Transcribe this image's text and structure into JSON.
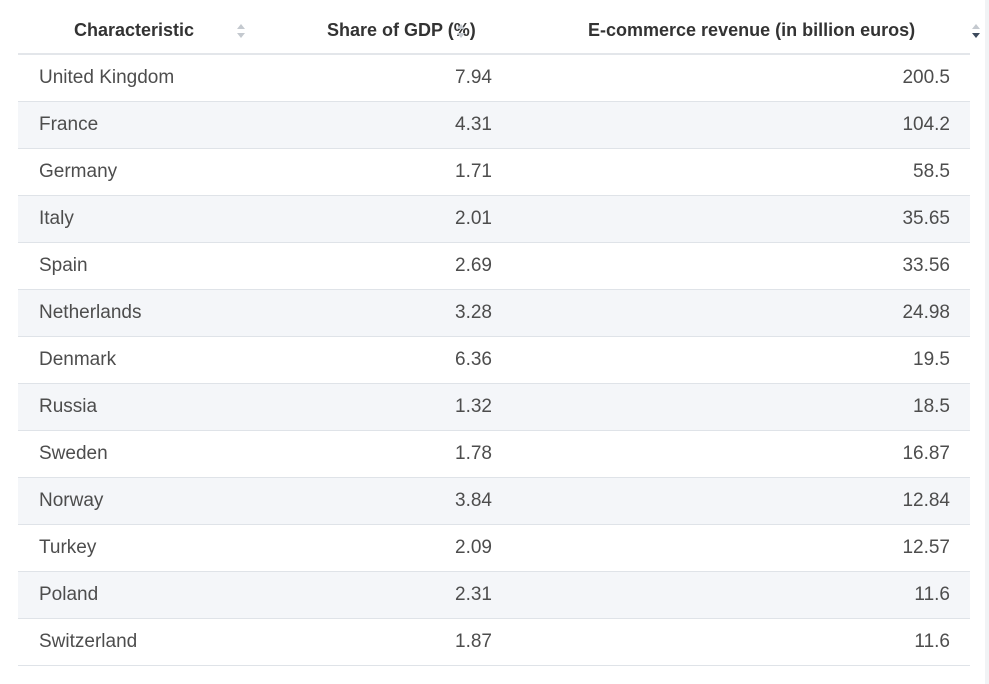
{
  "chart_data": {
    "type": "table",
    "columns": [
      {
        "label": "Characteristic",
        "sort": "none"
      },
      {
        "label": "Share of GDP (%)",
        "sort": "none"
      },
      {
        "label": "E-commerce revenue (in billion euros)",
        "sort": "descending"
      }
    ],
    "rows": [
      {
        "characteristic": "United Kingdom",
        "share": "7.94",
        "revenue": "200.5"
      },
      {
        "characteristic": "France",
        "share": "4.31",
        "revenue": "104.2"
      },
      {
        "characteristic": "Germany",
        "share": "1.71",
        "revenue": "58.5"
      },
      {
        "characteristic": "Italy",
        "share": "2.01",
        "revenue": "35.65"
      },
      {
        "characteristic": "Spain",
        "share": "2.69",
        "revenue": "33.56"
      },
      {
        "characteristic": "Netherlands",
        "share": "3.28",
        "revenue": "24.98"
      },
      {
        "characteristic": "Denmark",
        "share": "6.36",
        "revenue": "19.5"
      },
      {
        "characteristic": "Russia",
        "share": "1.32",
        "revenue": "18.5"
      },
      {
        "characteristic": "Sweden",
        "share": "1.78",
        "revenue": "16.87"
      },
      {
        "characteristic": "Norway",
        "share": "3.84",
        "revenue": "12.84"
      },
      {
        "characteristic": "Turkey",
        "share": "2.09",
        "revenue": "12.57"
      },
      {
        "characteristic": "Poland",
        "share": "2.31",
        "revenue": "11.6"
      },
      {
        "characteristic": "Switzerland",
        "share": "1.87",
        "revenue": "11.6"
      }
    ]
  },
  "colors": {
    "header_text": "#333333",
    "body_text": "#4d4d4d",
    "stripe": "#f4f6f9",
    "sort_inactive": "#c4c9cf",
    "sort_active": "#3c4a5c"
  }
}
